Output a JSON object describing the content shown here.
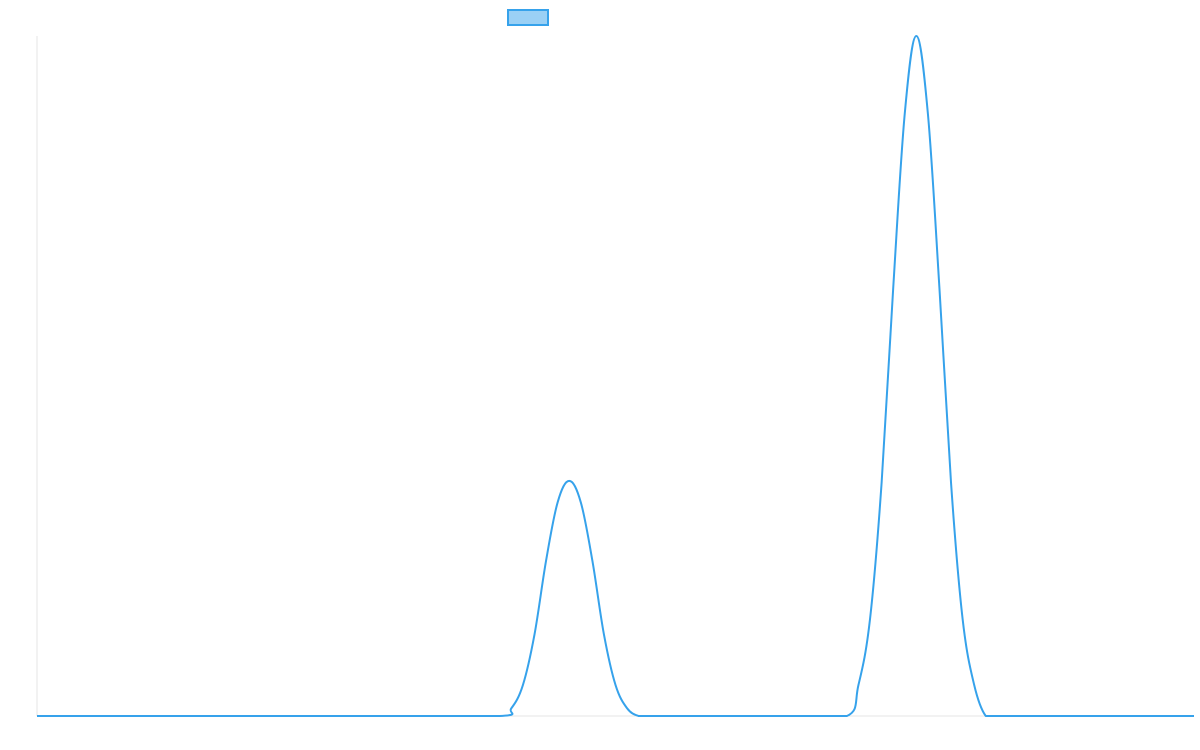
{
  "chart_data": {
    "type": "line",
    "title": "",
    "xlabel": "",
    "ylabel": "",
    "x": [
      0,
      10,
      20,
      30,
      40,
      41,
      42,
      43,
      44,
      45,
      46,
      47,
      48,
      49,
      50,
      51,
      52,
      53,
      54,
      60,
      65,
      70,
      71,
      72,
      73,
      74,
      75,
      76,
      77,
      78,
      79,
      80,
      81,
      82,
      83,
      84,
      90,
      100
    ],
    "series": [
      {
        "name": "",
        "color": "#36A2EB",
        "fill": "#9AD0F5",
        "values": [
          0,
          0,
          0,
          0,
          0,
          0.4,
          1.6,
          4.2,
          8.0,
          11.0,
          12.1,
          11.0,
          8.0,
          4.2,
          1.6,
          0.4,
          0,
          0,
          0,
          0,
          0,
          0,
          1.6,
          5.0,
          12.0,
          22.0,
          31.0,
          35.0,
          31.0,
          22.0,
          12.0,
          5.0,
          1.6,
          0,
          0,
          0,
          0,
          0
        ]
      }
    ],
    "xlim": [
      0,
      100
    ],
    "ylim": [
      0,
      35
    ],
    "grid": false,
    "legend": "top-center",
    "axes": {
      "left_axis_color": "#e6e6e6",
      "bottom_axis_color": "#e6e6e6"
    }
  }
}
